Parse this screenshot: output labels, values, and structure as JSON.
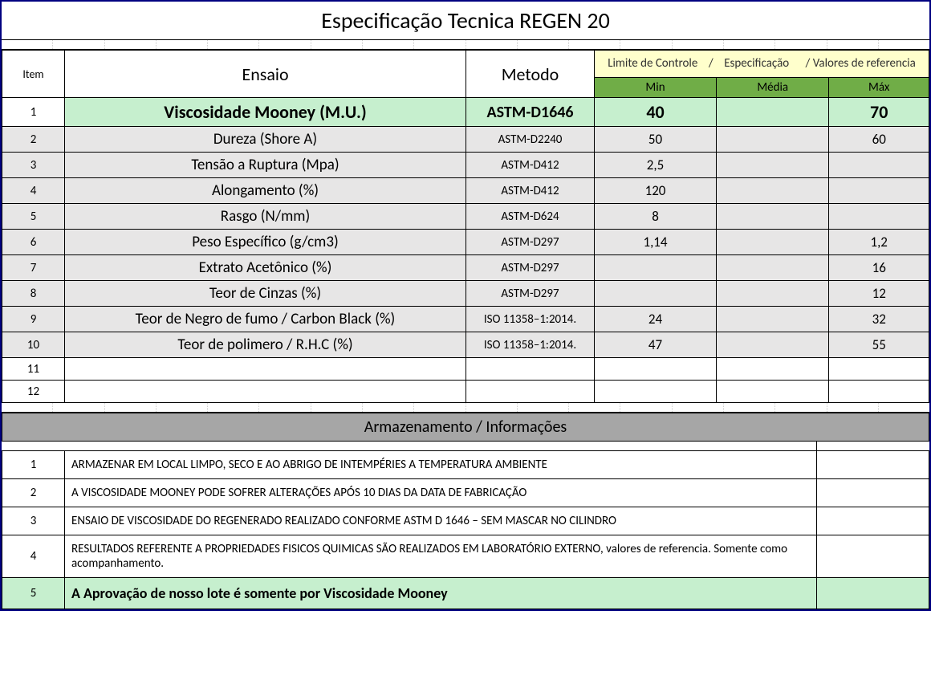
{
  "title": "Especificação Tecnica REGEN 20",
  "headers": {
    "item": "Item",
    "ensaio": "Ensaio",
    "metodo": "Metodo",
    "limite": "Limite de Controle    /    Especificação      / Valores de referencia",
    "min": "Min",
    "media": "Média",
    "max": "Máx"
  },
  "rows": [
    {
      "item": "1",
      "ensaio": "Viscosidade Mooney (M.U.)",
      "metodo": "ASTM-D1646",
      "min": "40",
      "media": "",
      "max": "70",
      "cls": "highlight"
    },
    {
      "item": "2",
      "ensaio": "Dureza (Shore A)",
      "metodo": "ASTM-D2240",
      "min": "50",
      "media": "",
      "max": "60",
      "cls": "gray"
    },
    {
      "item": "3",
      "ensaio": "Tensão a Ruptura (Mpa)",
      "metodo": "ASTM-D412",
      "min": "2,5",
      "media": "",
      "max": "",
      "cls": "gray"
    },
    {
      "item": "4",
      "ensaio": "Alongamento (%)",
      "metodo": "ASTM-D412",
      "min": "120",
      "media": "",
      "max": "",
      "cls": "gray"
    },
    {
      "item": "5",
      "ensaio": "Rasgo (N/mm)",
      "metodo": "ASTM-D624",
      "min": "8",
      "media": "",
      "max": "",
      "cls": "gray"
    },
    {
      "item": "6",
      "ensaio": "Peso Específico (g/cm3)",
      "metodo": "ASTM-D297",
      "min": "1,14",
      "media": "",
      "max": "1,2",
      "cls": "gray"
    },
    {
      "item": "7",
      "ensaio": "Extrato Acetônico (%)",
      "metodo": "ASTM-D297",
      "min": "",
      "media": "",
      "max": "16",
      "cls": "gray"
    },
    {
      "item": "8",
      "ensaio": "Teor de Cinzas (%)",
      "metodo": "ASTM-D297",
      "min": "",
      "media": "",
      "max": "12",
      "cls": "gray"
    },
    {
      "item": "9",
      "ensaio": "Teor de Negro de fumo / Carbon Black (%)",
      "metodo": "ISO 11358–1:2014.",
      "min": "24",
      "media": "",
      "max": "32",
      "cls": "gray"
    },
    {
      "item": "10",
      "ensaio": "Teor de polimero / R.H.C (%)",
      "metodo": "ISO 11358–1:2014.",
      "min": "47",
      "media": "",
      "max": "55",
      "cls": "gray"
    },
    {
      "item": "11",
      "ensaio": "",
      "metodo": "",
      "min": "",
      "media": "",
      "max": "",
      "cls": "blank"
    },
    {
      "item": "12",
      "ensaio": "",
      "metodo": "",
      "min": "",
      "media": "",
      "max": "",
      "cls": "blank"
    }
  ],
  "section2_title": "Armazenamento / Informações",
  "info": [
    {
      "item": "1",
      "text": "ARMAZENAR EM LOCAL LIMPO, SECO E AO ABRIGO DE INTEMPÉRIES A TEMPERATURA AMBIENTE",
      "cls": ""
    },
    {
      "item": "2",
      "text": "A VISCOSIDADE MOONEY PODE SOFRER ALTERAÇÕES APÓS 10 DIAS DA DATA DE FABRICAÇÃO",
      "cls": ""
    },
    {
      "item": "3",
      "text": "ENSAIO DE VISCOSIDADE DO REGENERADO REALIZADO CONFORME ASTM D 1646 – SEM MASCAR NO CILINDRO",
      "cls": ""
    },
    {
      "item": "4",
      "text": "RESULTADOS REFERENTE A PROPRIEDADES FISICOS QUIMICAS SÃO REALIZADOS EM LABORATÓRIO EXTERNO, valores de referencia. Somente como acompanhamento.",
      "cls": ""
    },
    {
      "item": "5",
      "text": "A Aprovação de nosso lote é somente por Viscosidade Mooney",
      "cls": "highlight-info"
    }
  ],
  "colors": {
    "outer_border": "#000080",
    "green_header": "#70ad47",
    "green_highlight": "#c6efce",
    "cream": "#ffffcc",
    "gray_row": "#e7e6e6",
    "gray_section": "#a6a6a6"
  }
}
